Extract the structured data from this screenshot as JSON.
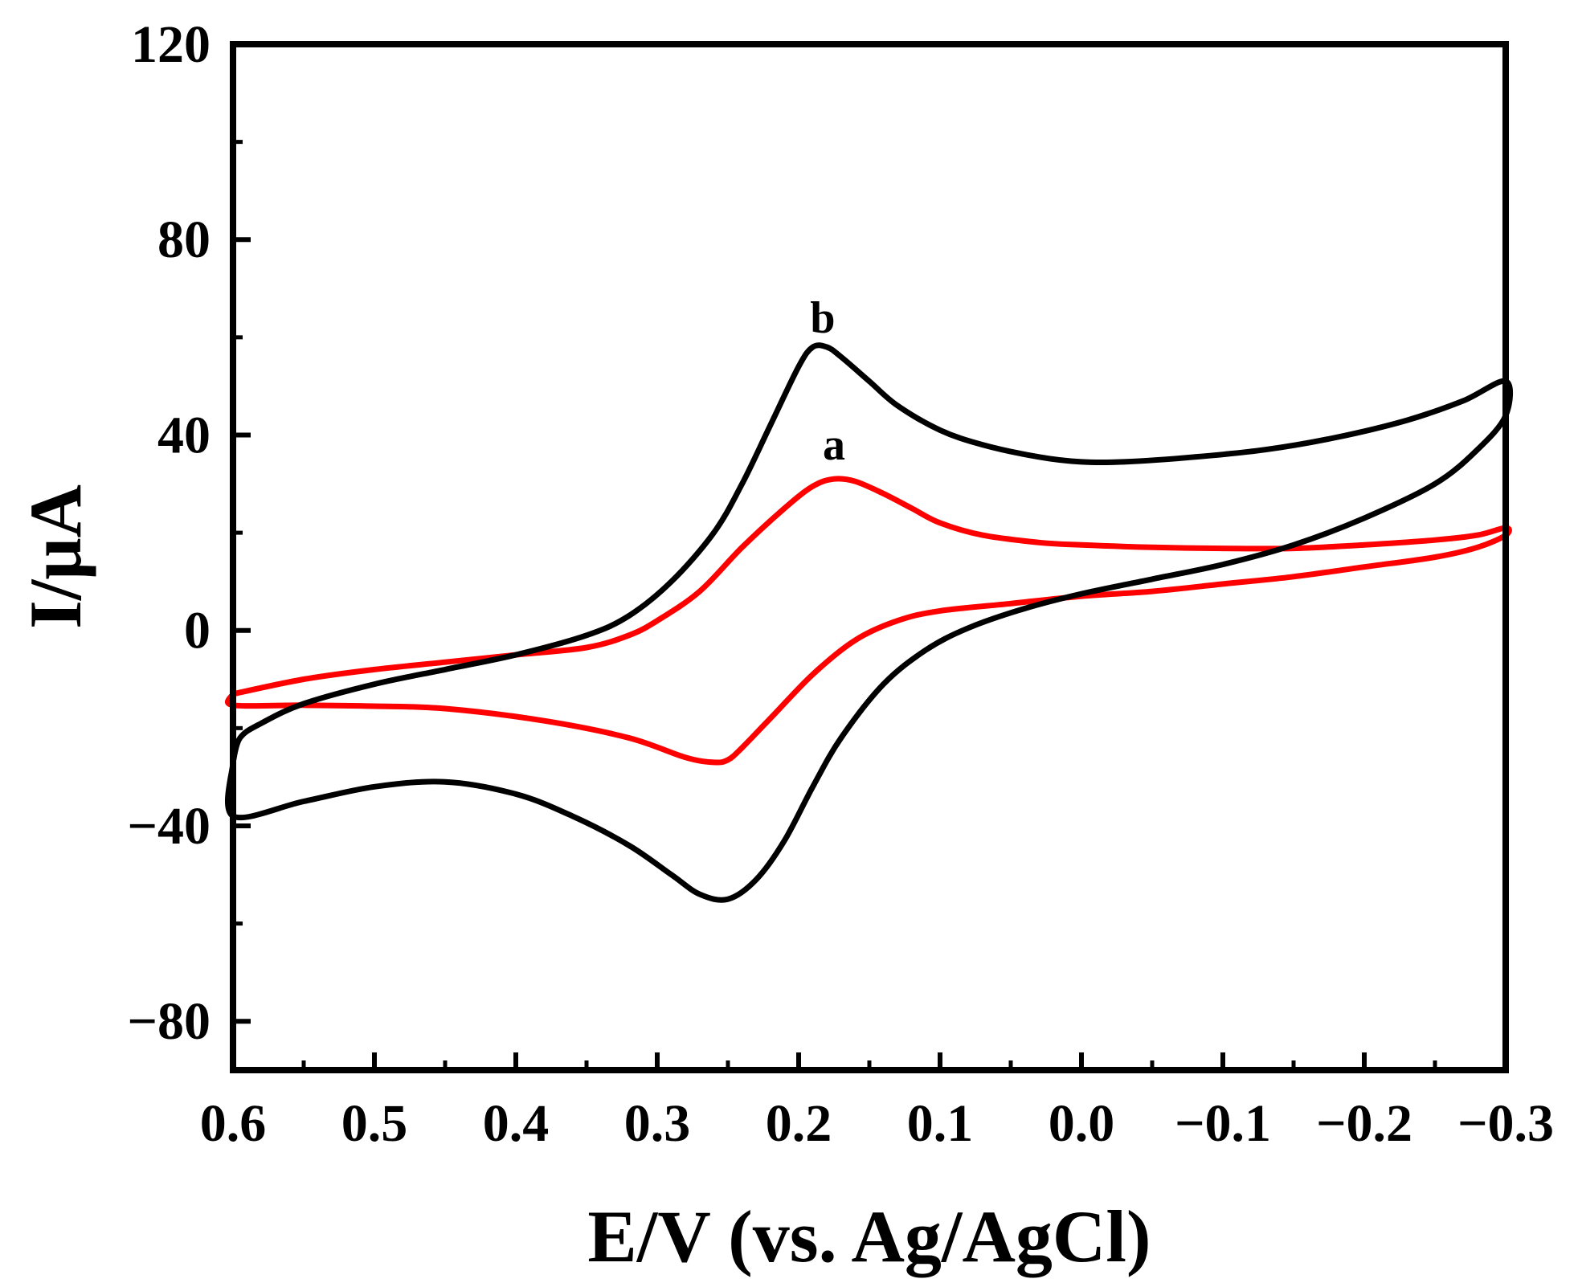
{
  "chart_data": {
    "type": "line",
    "title": "",
    "xlabel": "E/V (vs. Ag/AgCl)",
    "ylabel": "I/μA",
    "xlim": [
      0.6,
      -0.3
    ],
    "ylim": [
      -90,
      120
    ],
    "x_ticks": [
      0.6,
      0.5,
      0.4,
      0.3,
      0.2,
      0.1,
      0.0,
      -0.1,
      -0.2,
      -0.3
    ],
    "x_tick_labels": [
      "0.6",
      "0.5",
      "0.4",
      "0.3",
      "0.2",
      "0.1",
      "0.0",
      "−0.1",
      "−0.2",
      "−0.3"
    ],
    "y_ticks": [
      -80,
      -40,
      0,
      40,
      80,
      120
    ],
    "y_tick_labels": [
      "−80",
      "−40",
      "0",
      "40",
      "80",
      "120"
    ],
    "grid": false,
    "series": [
      {
        "name": "a",
        "color": "#ff0000",
        "label_at": [
          0.175,
          35
        ],
        "points": [
          [
            0.6,
            -13
          ],
          [
            0.55,
            -10
          ],
          [
            0.5,
            -8
          ],
          [
            0.45,
            -6.5
          ],
          [
            0.4,
            -5
          ],
          [
            0.35,
            -3.5
          ],
          [
            0.32,
            -1
          ],
          [
            0.3,
            2
          ],
          [
            0.27,
            8
          ],
          [
            0.24,
            17
          ],
          [
            0.21,
            25
          ],
          [
            0.19,
            29.5
          ],
          [
            0.175,
            31
          ],
          [
            0.16,
            30.5
          ],
          [
            0.14,
            28
          ],
          [
            0.12,
            25
          ],
          [
            0.1,
            22
          ],
          [
            0.07,
            19.5
          ],
          [
            0.03,
            18
          ],
          [
            0.0,
            17.5
          ],
          [
            -0.05,
            17
          ],
          [
            -0.1,
            16.8
          ],
          [
            -0.15,
            16.8
          ],
          [
            -0.2,
            17.5
          ],
          [
            -0.25,
            18.5
          ],
          [
            -0.28,
            19.5
          ],
          [
            -0.3,
            21
          ],
          [
            -0.3,
            19.5
          ],
          [
            -0.28,
            17
          ],
          [
            -0.25,
            15
          ],
          [
            -0.2,
            13
          ],
          [
            -0.15,
            11
          ],
          [
            -0.1,
            9.5
          ],
          [
            -0.05,
            8
          ],
          [
            0.0,
            7
          ],
          [
            0.05,
            5.5
          ],
          [
            0.1,
            4
          ],
          [
            0.13,
            2
          ],
          [
            0.16,
            -2
          ],
          [
            0.19,
            -9
          ],
          [
            0.22,
            -18
          ],
          [
            0.24,
            -24
          ],
          [
            0.25,
            -26.5
          ],
          [
            0.26,
            -27
          ],
          [
            0.28,
            -26
          ],
          [
            0.32,
            -22
          ],
          [
            0.38,
            -18.5
          ],
          [
            0.45,
            -16
          ],
          [
            0.5,
            -15.5
          ],
          [
            0.55,
            -15.3
          ],
          [
            0.6,
            -15.3
          ],
          [
            0.6,
            -13
          ]
        ]
      },
      {
        "name": "b",
        "color": "#000000",
        "label_at": [
          0.183,
          61
        ],
        "points": [
          [
            0.6,
            -27
          ],
          [
            0.595,
            -22
          ],
          [
            0.58,
            -19
          ],
          [
            0.55,
            -15
          ],
          [
            0.5,
            -11
          ],
          [
            0.45,
            -8
          ],
          [
            0.4,
            -5
          ],
          [
            0.35,
            -1
          ],
          [
            0.32,
            3
          ],
          [
            0.29,
            10
          ],
          [
            0.26,
            20
          ],
          [
            0.24,
            30
          ],
          [
            0.22,
            42
          ],
          [
            0.2,
            54
          ],
          [
            0.19,
            58
          ],
          [
            0.18,
            58
          ],
          [
            0.17,
            56
          ],
          [
            0.15,
            51
          ],
          [
            0.13,
            46
          ],
          [
            0.1,
            41
          ],
          [
            0.07,
            38
          ],
          [
            0.03,
            35.5
          ],
          [
            0.0,
            34.5
          ],
          [
            -0.03,
            34.5
          ],
          [
            -0.08,
            35.5
          ],
          [
            -0.13,
            37
          ],
          [
            -0.18,
            39.5
          ],
          [
            -0.23,
            43
          ],
          [
            -0.27,
            47
          ],
          [
            -0.3,
            51
          ],
          [
            -0.3,
            44
          ],
          [
            -0.28,
            37
          ],
          [
            -0.25,
            30
          ],
          [
            -0.2,
            23
          ],
          [
            -0.15,
            17.5
          ],
          [
            -0.1,
            13.5
          ],
          [
            -0.05,
            10.5
          ],
          [
            0.0,
            7.5
          ],
          [
            0.04,
            4.5
          ],
          [
            0.08,
            0.5
          ],
          [
            0.11,
            -4
          ],
          [
            0.14,
            -11
          ],
          [
            0.17,
            -22
          ],
          [
            0.19,
            -32
          ],
          [
            0.21,
            -43
          ],
          [
            0.23,
            -51
          ],
          [
            0.25,
            -55
          ],
          [
            0.27,
            -54
          ],
          [
            0.29,
            -50
          ],
          [
            0.32,
            -44
          ],
          [
            0.36,
            -38
          ],
          [
            0.4,
            -33.5
          ],
          [
            0.45,
            -31
          ],
          [
            0.5,
            -32
          ],
          [
            0.55,
            -35
          ],
          [
            0.6,
            -38
          ],
          [
            0.6,
            -27
          ]
        ]
      }
    ]
  }
}
